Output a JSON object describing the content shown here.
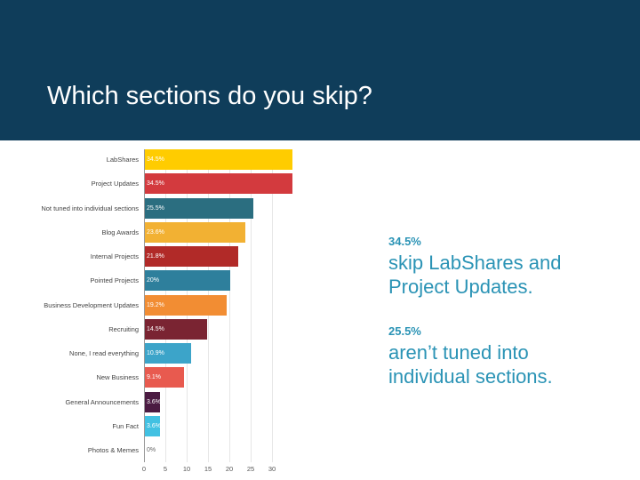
{
  "title": "Which sections do you skip?",
  "chart_data": {
    "type": "hbar",
    "categories": [
      "LabShares",
      "Project Updates",
      "Not tuned into individual sections",
      "Blog Awards",
      "Internal Projects",
      "Pointed Projects",
      "Business Development Updates",
      "Recruiting",
      "None, I read everything",
      "New Business",
      "General Announcements",
      "Fun Fact",
      "Photos & Memes"
    ],
    "values": [
      34.5,
      34.5,
      25.5,
      23.6,
      21.8,
      20,
      19.2,
      14.5,
      10.9,
      9.1,
      3.6,
      3.6,
      0
    ],
    "value_labels": [
      "34.5%",
      "34.5%",
      "25.5%",
      "23.6%",
      "21.8%",
      "20%",
      "19.2%",
      "14.5%",
      "10.9%",
      "9.1%",
      "3.6%",
      "3.6%",
      "0%"
    ],
    "colors": [
      "#ffcc00",
      "#d33a3e",
      "#2b6e80",
      "#f2b133",
      "#b12a28",
      "#2e7f9c",
      "#f28d33",
      "#7a2432",
      "#3ca4c9",
      "#e85a4f",
      "#4b1b42",
      "#42c1e2",
      "#cccccc"
    ],
    "xlim": [
      0,
      35
    ],
    "xticks": [
      0,
      5,
      10,
      15,
      20,
      25,
      30
    ],
    "grid": true
  },
  "annotations": [
    {
      "stat": "34.5%",
      "text": "skip LabShares and Project Updates."
    },
    {
      "stat": "25.5%",
      "text": "aren’t tuned into individual sections."
    }
  ]
}
